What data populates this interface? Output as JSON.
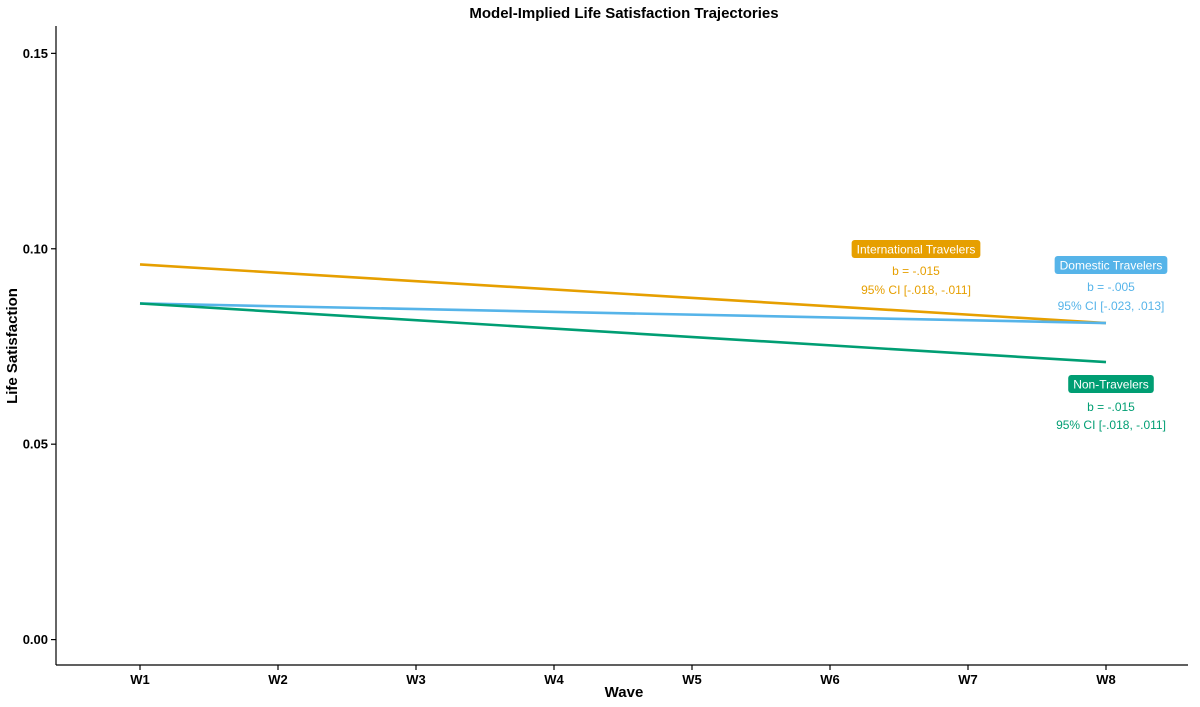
{
  "chart_data": {
    "type": "line",
    "title": "Model-Implied Life Satisfaction Trajectories",
    "xlabel": "Wave",
    "ylabel": "Life Satisfaction",
    "categories": [
      "W1",
      "W2",
      "W3",
      "W4",
      "W5",
      "W6",
      "W7",
      "W8"
    ],
    "ylim": [
      -0.0065,
      0.157
    ],
    "yticks": [
      "0.00",
      "0.05",
      "0.10",
      "0.15"
    ],
    "ytick_values": [
      0.0,
      0.05,
      0.1,
      0.15
    ],
    "grid": false,
    "legend": "none",
    "series": [
      {
        "name": "International Travelers",
        "color": "#E69F00",
        "start": 0.096,
        "end": 0.081,
        "values": [
          0.096,
          0.0939,
          0.0917,
          0.0896,
          0.0874,
          0.0853,
          0.0831,
          0.081
        ],
        "annotation": {
          "b": "b = -.015",
          "ci": "95% CI [-.018, -.011]"
        }
      },
      {
        "name": "Domestic Travelers",
        "color": "#56B4E9",
        "start": 0.086,
        "end": 0.081,
        "values": [
          0.086,
          0.0853,
          0.0846,
          0.0839,
          0.0831,
          0.0824,
          0.0817,
          0.081
        ],
        "annotation": {
          "b": "b = -.005",
          "ci": "95% CI [-.023, .013]"
        }
      },
      {
        "name": "Non-Travelers",
        "color": "#009E73",
        "start": 0.086,
        "end": 0.071,
        "values": [
          0.086,
          0.0839,
          0.0817,
          0.0796,
          0.0774,
          0.0753,
          0.0731,
          0.071
        ],
        "annotation": {
          "b": "b = -.015",
          "ci": "95% CI [-.018, -.011]"
        }
      }
    ]
  }
}
